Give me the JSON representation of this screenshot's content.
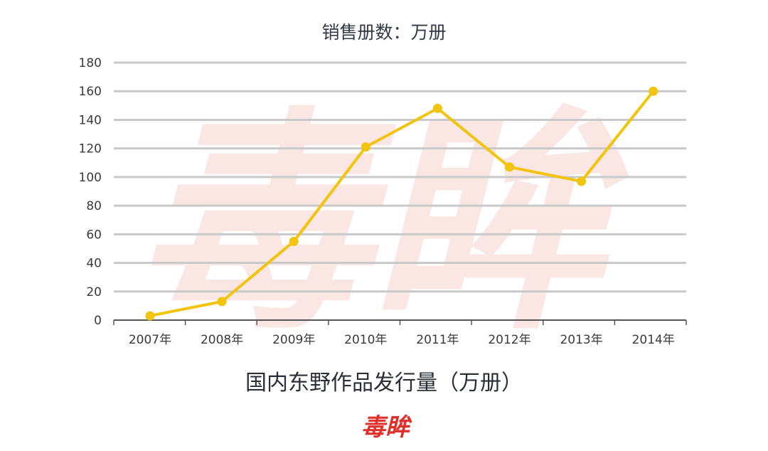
{
  "brand": {
    "logo_text": "毒眸",
    "logo_color": "#e0302a",
    "watermark_color_primary": "#f7d4cf",
    "watermark_color_secondary": "#eeeeee"
  },
  "colors": {
    "line": "#f2c40f",
    "grid": "#c9c9c9",
    "axis": "#555555"
  },
  "chart_data": {
    "type": "line",
    "title": "国内东野作品发行量（万册）",
    "unit_label": "销售册数：万册",
    "categories": [
      "2007年",
      "2008年",
      "2009年",
      "2010年",
      "2011年",
      "2012年",
      "2013年",
      "2014年"
    ],
    "series": [
      {
        "values": [
          3,
          13,
          55,
          121,
          148,
          107,
          97,
          160
        ]
      }
    ],
    "y_ticks": [
      "0",
      "20",
      "40",
      "60",
      "80",
      "100",
      "120",
      "140",
      "160",
      "180"
    ],
    "ylim": [
      0,
      180
    ],
    "grid": true,
    "legend": "none"
  }
}
